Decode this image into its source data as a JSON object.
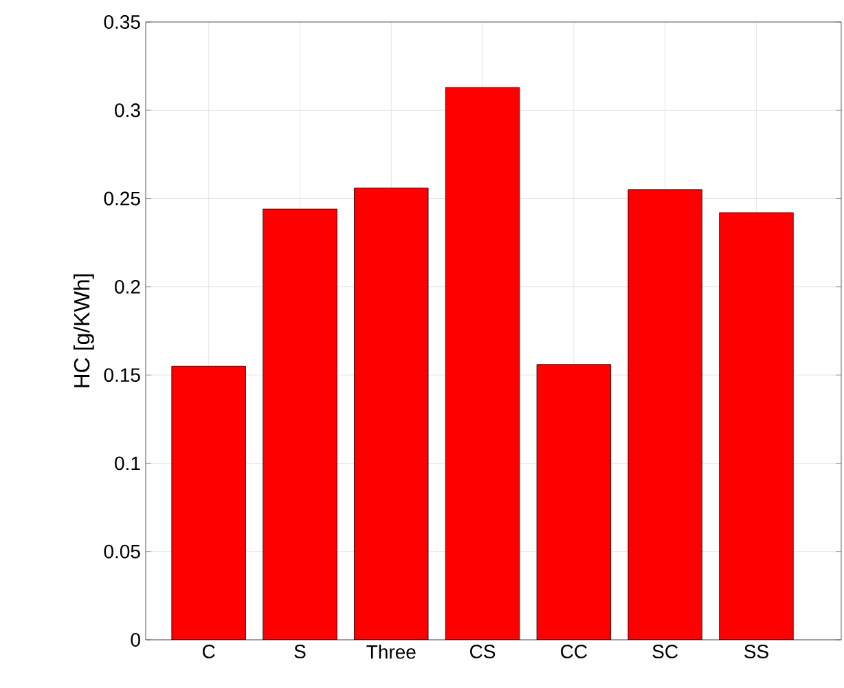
{
  "chart_data": {
    "type": "bar",
    "ylabel": "HC [g/KWh]",
    "categories": [
      "C",
      "S",
      "Three",
      "CS",
      "CC",
      "SC",
      "SS"
    ],
    "values": [
      0.155,
      0.244,
      0.256,
      0.313,
      0.156,
      0.255,
      0.242
    ],
    "color": "#ff0000",
    "ylim": [
      0,
      0.35
    ],
    "yticks": [
      0,
      0.05,
      0.1,
      0.15,
      0.2,
      0.25,
      0.3,
      0.35
    ],
    "grid": true
  }
}
